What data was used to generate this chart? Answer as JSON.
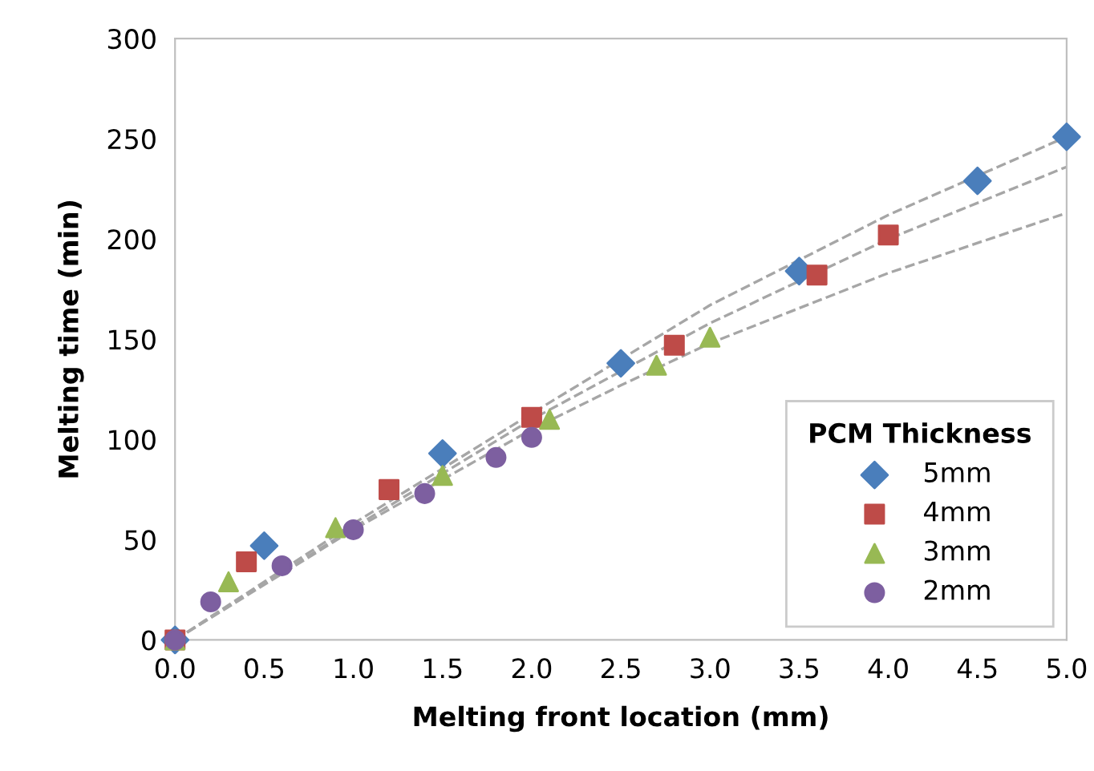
{
  "chart_data": {
    "type": "scatter",
    "xlabel": "Melting front location (mm)",
    "ylabel": "Melting time (min)",
    "legend_title": "PCM Thickness",
    "legend": "bottom right",
    "grid": false,
    "xlim": [
      0,
      5
    ],
    "xticks": [
      {
        "value": 0,
        "label": "0.0"
      },
      {
        "value": 0.5,
        "label": "0.5"
      },
      {
        "value": 1,
        "label": "1.0"
      },
      {
        "value": 1.5,
        "label": "1.5"
      },
      {
        "value": 2,
        "label": "2.0"
      },
      {
        "value": 2.5,
        "label": "2.5"
      },
      {
        "value": 3,
        "label": "3.0"
      },
      {
        "value": 3.5,
        "label": "3.5"
      },
      {
        "value": 4,
        "label": "4.0"
      },
      {
        "value": 4.5,
        "label": "4.5"
      },
      {
        "value": 5,
        "label": "5.0"
      }
    ],
    "ylim": [
      0,
      300
    ],
    "yticks": [
      0,
      50,
      100,
      150,
      200,
      250,
      300
    ],
    "series": [
      {
        "type": "line",
        "color": "#a6a6a6",
        "line_style": "dashed",
        "marker": "none",
        "x": [
          0,
          1,
          2,
          2.5,
          3,
          4,
          5
        ],
        "values": [
          0,
          58,
          113,
          140,
          167,
          212,
          251
        ]
      },
      {
        "type": "line",
        "color": "#a6a6a6",
        "line_style": "dashed",
        "marker": "none",
        "x": [
          0,
          1,
          2,
          2.5,
          3,
          4,
          5
        ],
        "values": [
          0,
          56,
          110,
          134,
          158,
          200,
          236
        ]
      },
      {
        "type": "line",
        "color": "#a6a6a6",
        "line_style": "dashed",
        "marker": "none",
        "x": [
          0,
          1,
          2,
          2.5,
          3,
          4,
          5
        ],
        "values": [
          0,
          55,
          105,
          127,
          148,
          183,
          213
        ]
      },
      {
        "name": "5mm",
        "color": "#4a7ebb",
        "marker": "diamond",
        "x": [
          0,
          0.5,
          1.5,
          2.5,
          3.5,
          4.5,
          5.0
        ],
        "values": [
          0,
          47,
          93,
          138,
          184,
          229,
          251
        ]
      },
      {
        "name": "4mm",
        "color": "#be4b48",
        "marker": "square",
        "x": [
          0,
          0.4,
          1.2,
          2.0,
          2.8,
          3.6,
          4.0
        ],
        "values": [
          0,
          39,
          75,
          111,
          147,
          182,
          202
        ]
      },
      {
        "name": "3mm",
        "color": "#98b954",
        "marker": "triangle",
        "x": [
          0,
          0.3,
          0.9,
          1.5,
          2.1,
          2.7,
          3.0
        ],
        "values": [
          0,
          29,
          56,
          82,
          110,
          137,
          151
        ]
      },
      {
        "name": "2mm",
        "color": "#7d5fa0",
        "marker": "circle",
        "x": [
          0,
          0.2,
          0.6,
          1.0,
          1.4,
          1.8,
          2.0
        ],
        "values": [
          0,
          19,
          37,
          55,
          73,
          91,
          101
        ]
      }
    ]
  }
}
